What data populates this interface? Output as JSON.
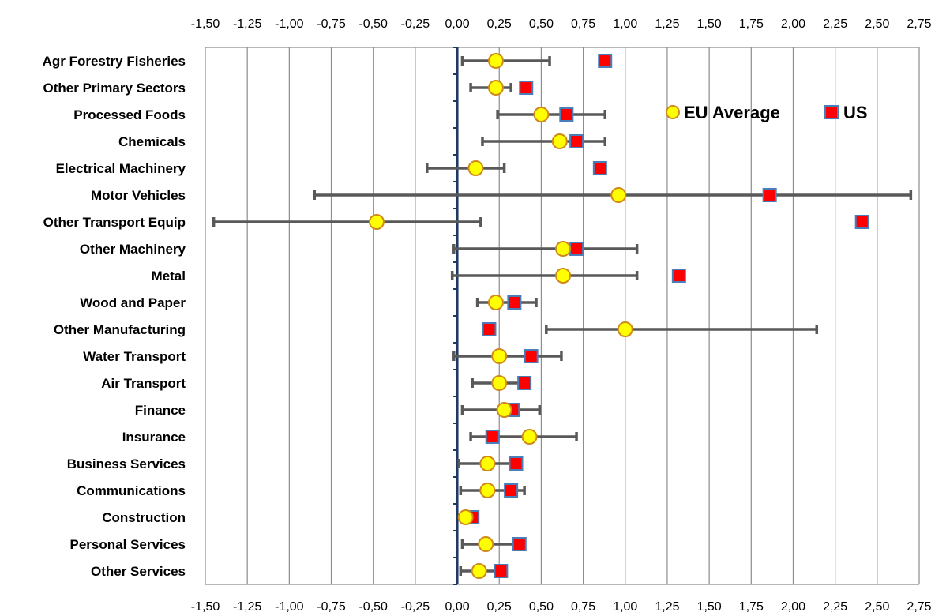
{
  "chart_data": {
    "type": "scatter",
    "orientation": "horizontal",
    "xlim": [
      -1.5,
      2.75
    ],
    "x_ticks": [
      -1.5,
      -1.25,
      -1.0,
      -0.75,
      -0.5,
      -0.25,
      0.0,
      0.25,
      0.5,
      0.75,
      1.0,
      1.25,
      1.5,
      1.75,
      2.0,
      2.25,
      2.5,
      2.75
    ],
    "x_tick_labels": [
      "-1,50",
      "-1,25",
      "-1,00",
      "-0,75",
      "-0,50",
      "-0,25",
      "0,00",
      "0,25",
      "0,50",
      "0,75",
      "1,00",
      "1,25",
      "1,50",
      "1,75",
      "2,00",
      "2,25",
      "2,50",
      "2,75"
    ],
    "axis_ticks_top_and_bottom": true,
    "grid": "vertical",
    "zero_line_color": "#1f3864",
    "legend_position": "top-right",
    "categories": [
      "Agr Forestry Fisheries",
      "Other Primary Sectors",
      "Processed Foods",
      "Chemicals",
      "Electrical Machinery",
      "Motor Vehicles",
      "Other Transport Equip",
      "Other Machinery ",
      "Metal",
      "Wood and Paper ",
      "Other Manufacturing",
      "Water Transport",
      "Air Transport",
      "Finance",
      "Insurance",
      "Business Services",
      "Communications",
      "Construction",
      "Personal Services",
      "Other Services"
    ],
    "series": [
      {
        "name": "EU Average",
        "marker": "circle",
        "color": "#ffff00",
        "edge_color": "#d08a1c",
        "values": [
          0.23,
          0.23,
          0.5,
          0.61,
          0.11,
          0.96,
          -0.48,
          0.63,
          0.63,
          0.23,
          1.0,
          0.25,
          0.25,
          0.28,
          0.43,
          0.18,
          0.18,
          0.05,
          0.17,
          0.13
        ],
        "error_low": [
          0.03,
          0.08,
          0.24,
          0.15,
          -0.18,
          -0.85,
          -1.45,
          -0.02,
          -0.03,
          0.12,
          0.53,
          -0.02,
          0.09,
          0.03,
          0.08,
          0.01,
          0.02,
          0.02,
          0.03,
          0.02
        ],
        "error_high": [
          0.55,
          0.32,
          0.88,
          0.88,
          0.28,
          2.7,
          0.14,
          1.07,
          1.07,
          0.47,
          2.14,
          0.62,
          0.39,
          0.49,
          0.71,
          0.37,
          0.4,
          0.08,
          0.38,
          0.25
        ],
        "error_bar_color": "#595959"
      },
      {
        "name": "US",
        "marker": "square",
        "color": "#ff0000",
        "edge_color": "#4a7ebb",
        "values": [
          0.88,
          0.41,
          0.65,
          0.71,
          0.85,
          1.86,
          2.41,
          0.71,
          1.32,
          0.34,
          0.19,
          0.44,
          0.4,
          0.33,
          0.21,
          0.35,
          0.32,
          0.09,
          0.37,
          0.26
        ]
      }
    ]
  }
}
